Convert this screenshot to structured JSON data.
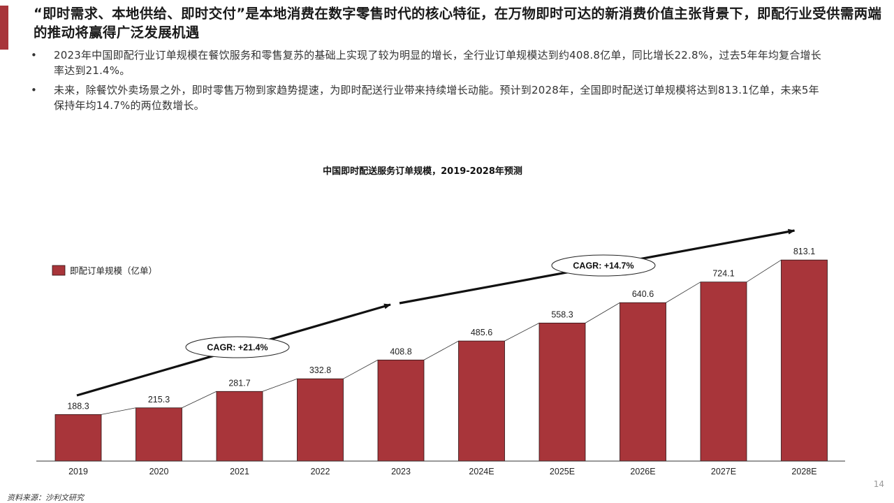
{
  "slide": {
    "title": "“即时需求、本地供给、即时交付”是本地消费在数字零售时代的核心特征，在万物即时可达的新消费价值主张背景下，即配行业受供需两端的推动将赢得广泛发展机遇",
    "bullets": [
      "2023年中国即配行业订单规模在餐饮服务和零售复苏的基础上实现了较为明显的增长，全行业订单规模达到约408.8亿单，同比增长22.8%，过去5年年均复合增长率达到21.4%。",
      "未来，除餐饮外卖场景之外，即时零售万物到家趋势提速，为即时配送行业带来持续增长动能。预计到2028年，全国即时配送订单规模将达到813.1亿单，未来5年保持年均14.7%的两位数增长。"
    ],
    "bullet_glyph": "•",
    "source": "资料来源：沙利文研究",
    "page_number": "14",
    "accent_color": "#a8353a"
  },
  "chart_data": {
    "type": "bar",
    "title": "中国即时配送服务订单规模，2019-2028年预测",
    "categories": [
      "2019",
      "2020",
      "2021",
      "2022",
      "2023",
      "2024E",
      "2025E",
      "2026E",
      "2027E",
      "2028E"
    ],
    "series": [
      {
        "name": "即配订单规模（亿单）",
        "values": [
          188.3,
          215.3,
          281.7,
          332.8,
          408.8,
          485.6,
          558.3,
          640.6,
          724.1,
          813.1
        ],
        "color": "#a8353a"
      }
    ],
    "data_labels": [
      "188.3",
      "215.3",
      "281.7",
      "332.8",
      "408.8",
      "485.6",
      "558.3",
      "640.6",
      "724.1",
      "813.1"
    ],
    "annotations": [
      {
        "text": "CAGR: +21.4%",
        "from": "2019",
        "to": "2023"
      },
      {
        "text": "CAGR: +14.7%",
        "from": "2023",
        "to": "2028E"
      }
    ],
    "ylim": [
      0,
      900
    ],
    "grid": false,
    "legend_position": "top-left",
    "xlabel": "",
    "ylabel": ""
  }
}
